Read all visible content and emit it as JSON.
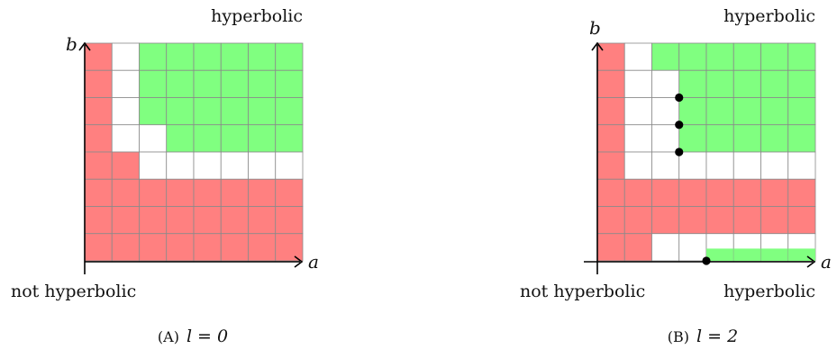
{
  "panels": [
    {
      "id": "a",
      "top_label": "hyperbolic",
      "bottom_left_label": "not hyperbolic",
      "bottom_right_label": "",
      "x_axis_label": "a",
      "y_axis_label": "b",
      "caption_prefix": "(A)",
      "caption_math": "l = 0",
      "grid": {
        "cols": 8,
        "rows": 8,
        "rows_top_to_bottom": [
          "RWGGGGGG",
          "RWGGGGGG",
          "RWGGGGGG",
          "RWWGGGGG",
          "RRWWWWWW",
          "RRRRRRRR",
          "RRRRRRRR",
          "RRRRRRRR"
        ]
      },
      "dots": []
    },
    {
      "id": "b",
      "top_label": "hyperbolic",
      "bottom_left_label": "not hyperbolic",
      "bottom_right_label": "hyperbolic",
      "x_axis_label": "a",
      "y_axis_label": "b",
      "caption_prefix": "(B)",
      "caption_math": "l = 2",
      "grid": {
        "cols": 8,
        "rows": 8,
        "rows_top_to_bottom": [
          "RWGGGGGG",
          "RWWGGGGG",
          "RWWGGGGG",
          "RWWGGGGG",
          "RWWWWWWW",
          "RRRRRRRR",
          "RRRRRRRR",
          "RRWWHHHH"
        ]
      },
      "dots": [
        {
          "col": 2,
          "row_from_bottom": 6
        },
        {
          "col": 2,
          "row_from_bottom": 5
        },
        {
          "col": 2,
          "row_from_bottom": 4
        },
        {
          "col": 3,
          "row_from_bottom": 0
        }
      ]
    }
  ],
  "colors": {
    "red": "#ff8080",
    "green": "#80ff80",
    "white": "#ffffff",
    "grid_line": "#8a8a8a"
  }
}
